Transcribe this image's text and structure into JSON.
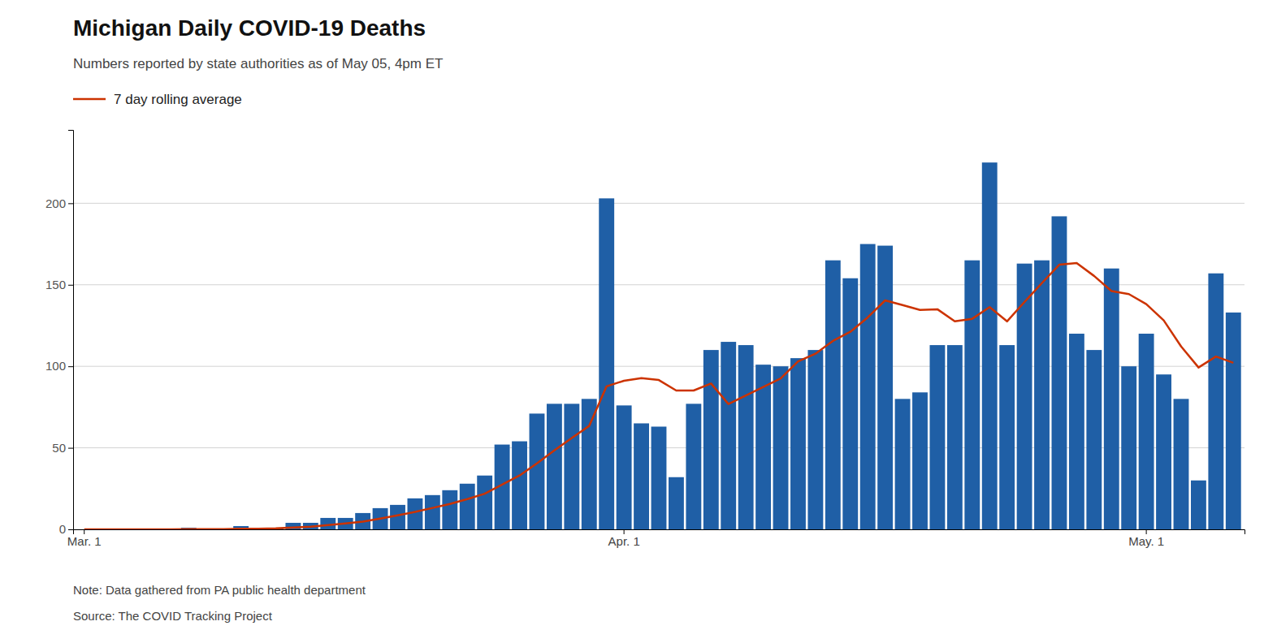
{
  "chart_data": {
    "type": "bar",
    "title": "Michigan Daily COVID-19 Deaths",
    "subtitle": "Numbers reported by state authorities as of May 05, 4pm ET",
    "annotations": [
      "Note: Data gathered from PA public health department",
      "Source: The COVID Tracking Project"
    ],
    "categories": [
      "Mar. 1",
      null,
      null,
      null,
      null,
      null,
      null,
      null,
      null,
      null,
      null,
      null,
      null,
      null,
      null,
      null,
      null,
      null,
      null,
      null,
      null,
      null,
      null,
      null,
      null,
      null,
      null,
      null,
      null,
      null,
      null,
      "Apr. 1",
      null,
      null,
      null,
      null,
      null,
      null,
      null,
      null,
      null,
      null,
      null,
      null,
      null,
      null,
      null,
      null,
      null,
      null,
      null,
      null,
      null,
      null,
      null,
      null,
      null,
      null,
      null,
      null,
      null,
      "May. 1",
      null,
      null,
      null,
      null,
      null
    ],
    "series": [
      {
        "type": "bar",
        "color": "#1f5fa6",
        "values": [
          0,
          0,
          0,
          0,
          0,
          0,
          1,
          0,
          0,
          2,
          0,
          1,
          4,
          4,
          7,
          7,
          10,
          13,
          15,
          19,
          21,
          24,
          28,
          33,
          52,
          54,
          71,
          77,
          77,
          80,
          203,
          76,
          65,
          63,
          32,
          77,
          110,
          115,
          113,
          101,
          100,
          105,
          110,
          165,
          154,
          175,
          174,
          80,
          84,
          113,
          113,
          165,
          225,
          113,
          163,
          165,
          192,
          120,
          110,
          160,
          100,
          120,
          95,
          80,
          30,
          157,
          133
        ]
      },
      {
        "type": "line",
        "name": "7 day rolling average",
        "color": "#cc3300",
        "values": [
          0,
          0,
          0,
          0,
          0,
          0,
          0.14285714285714285,
          0.14285714285714285,
          0.14285714285714285,
          0.42857142857142855,
          0.42857142857142855,
          0.5714285714285714,
          1.1428571428571428,
          1.5714285714285714,
          2.5714285714285716,
          3.5714285714285716,
          4.714285714285714,
          6.571428571428571,
          8.571428571428571,
          10.714285714285714,
          13.142857142857142,
          15.571428571428571,
          18.571428571428573,
          21.857142857142858,
          27.428571428571427,
          33,
          40.42857142857143,
          48.42857142857143,
          56,
          63.42857142857143,
          87.71428571428571,
          91.14285714285714,
          92.71428571428571,
          91.57142857142857,
          85.14285714285714,
          85.14285714285714,
          89.42857142857143,
          76.85714285714286,
          82.14285714285714,
          87.28571428571429,
          92.57142857142857,
          103,
          107.71428571428571,
          115.57142857142857,
          121.14285714285714,
          130,
          140.42857142857142,
          137.57142857142858,
          134.57142857142858,
          135,
          127.57142857142857,
          129.14285714285714,
          136.28571428571428,
          127.57142857142857,
          139.42857142857142,
          151,
          162.28571428571428,
          163.28571428571428,
          155.42857142857142,
          146.14285714285714,
          144.28571428571428,
          138.14285714285714,
          128.14285714285714,
          112.14285714285714,
          99.28571428571429,
          106,
          102.14285714285714
        ]
      }
    ],
    "ylim": [
      0,
      245
    ],
    "yticks": [
      0,
      50,
      100,
      150,
      200
    ],
    "grid": true,
    "legend": "upper left"
  }
}
